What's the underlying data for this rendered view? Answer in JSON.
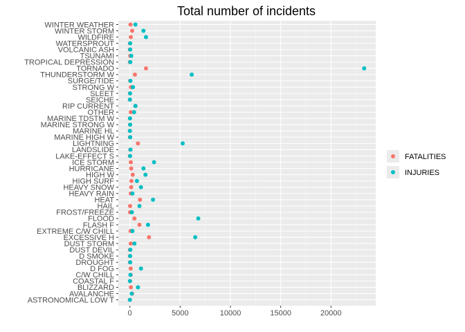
{
  "chart_data": {
    "type": "scatter",
    "title": "Total number of incidents",
    "xlabel": "",
    "ylabel": "",
    "xlim": [
      -1150,
      24450
    ],
    "x_ticks": [
      0,
      5000,
      10000,
      15000,
      20000
    ],
    "x_tick_labels": [
      "0",
      "5000",
      "10000",
      "15000",
      "20000"
    ],
    "grid": true,
    "legend_position": "right",
    "categories": [
      "WINTER WEATHER",
      "WINTER STORM",
      "WILDFIRE",
      "WATERSPROUT",
      "VOLCANIC ASH",
      "TSUNAMI",
      "TROPICAL DEPRESSION",
      "TORNADO",
      "THUNDERSTORM W",
      "SURGE/TIDE",
      "STRONG W",
      "SLEET",
      "SEICHE",
      "RIP CURRENT",
      "OTHER",
      "MARINE TDSTM W",
      "MARINE STRONG W",
      "MARINE HL",
      "MARINE HIGH W",
      "LIGHTNING",
      "LANDSLIDE",
      "LAKE-EFFECT S",
      "ICE STORM",
      "HURRICANE",
      "HIGH W",
      "HIGH SURF",
      "HEAVY SNOW",
      "HEAVY RAIN",
      "HEAT",
      "HAIL",
      "FROST/FREEZE",
      "FLOOD",
      "FLASH F",
      "EXTREME C/W CHILL",
      "EXCESSIVE H",
      "DUST STORM",
      "DUST DEVIL",
      "D SMOKE",
      "DROUGHT",
      "D FOG",
      "C/W CHILL",
      "COASTAL F",
      "BLIZZARD",
      "AVALANCHE",
      "ASTRONOMICAL LOW T"
    ],
    "series": [
      {
        "name": "FATALITIES",
        "color": "#F8766D",
        "values": [
          60,
          220,
          90,
          3,
          0,
          30,
          0,
          1600,
          500,
          25,
          100,
          2,
          2,
          550,
          90,
          5,
          15,
          1,
          5,
          800,
          40,
          0,
          90,
          130,
          280,
          150,
          130,
          90,
          1000,
          20,
          15,
          450,
          950,
          70,
          1900,
          80,
          2,
          0,
          5,
          80,
          80,
          10,
          100,
          220,
          0
        ]
      },
      {
        "name": "INJURIES",
        "color": "#00BFC4",
        "values": [
          550,
          1350,
          1600,
          30,
          30,
          140,
          40,
          23300,
          6150,
          50,
          300,
          20,
          0,
          550,
          420,
          10,
          25,
          2,
          30,
          5250,
          60,
          25,
          2400,
          1350,
          1550,
          700,
          1100,
          250,
          2300,
          950,
          200,
          6800,
          1800,
          250,
          6500,
          450,
          45,
          25,
          30,
          1100,
          50,
          5,
          800,
          180,
          0
        ]
      }
    ]
  }
}
